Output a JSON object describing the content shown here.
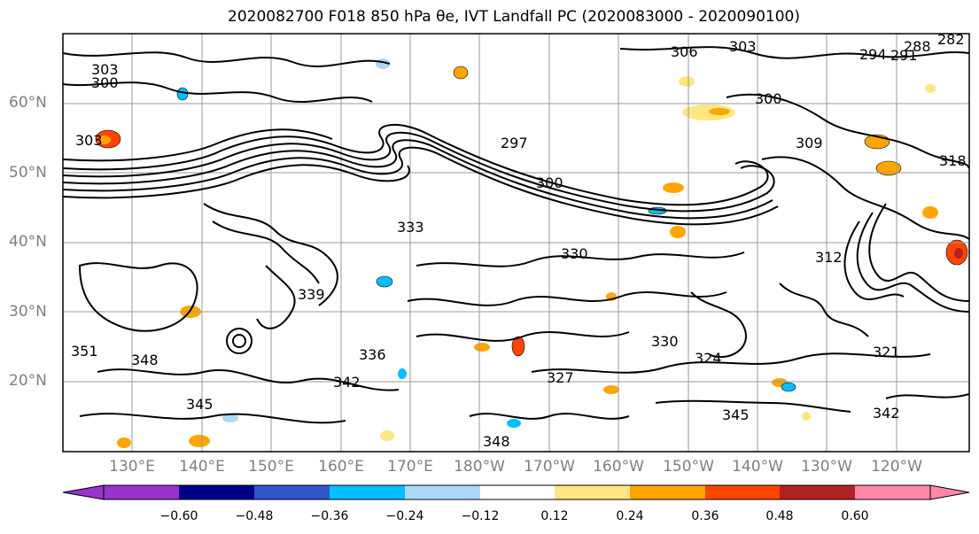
{
  "title": "2020082700 F018 850 hPa θe, IVT Landfall PC (2020083000 - 2020090100)",
  "map": {
    "lat_labels": [
      "60°N",
      "50°N",
      "40°N",
      "30°N",
      "20°N"
    ],
    "lon_labels": [
      "130°E",
      "140°E",
      "150°E",
      "160°E",
      "170°E",
      "180°W",
      "170°W",
      "160°W",
      "150°W",
      "140°W",
      "130°W",
      "120°W"
    ],
    "contour_labels": [
      "303",
      "300",
      "303",
      "297",
      "300",
      "306",
      "303",
      "294",
      "291",
      "288",
      "282",
      "300",
      "309",
      "318",
      "330",
      "312",
      "321",
      "327",
      "330",
      "336",
      "342",
      "345",
      "348",
      "351",
      "339",
      "333",
      "324",
      "342",
      "345",
      "348"
    ],
    "contour_line_color": "#000000",
    "gridline_color": "#9a9a9a"
  },
  "colorbar": {
    "ticks": [
      "−0.60",
      "−0.48",
      "−0.36",
      "−0.24",
      "−0.12",
      "0.12",
      "0.24",
      "0.36",
      "0.48",
      "0.60"
    ],
    "colors": [
      "#9933cc",
      "#00008b",
      "#3355cc",
      "#00bfff",
      "#add8f7",
      "#ffffff",
      "#ffe680",
      "#ffa500",
      "#ff4500",
      "#b22222",
      "#ff88aa"
    ]
  }
}
